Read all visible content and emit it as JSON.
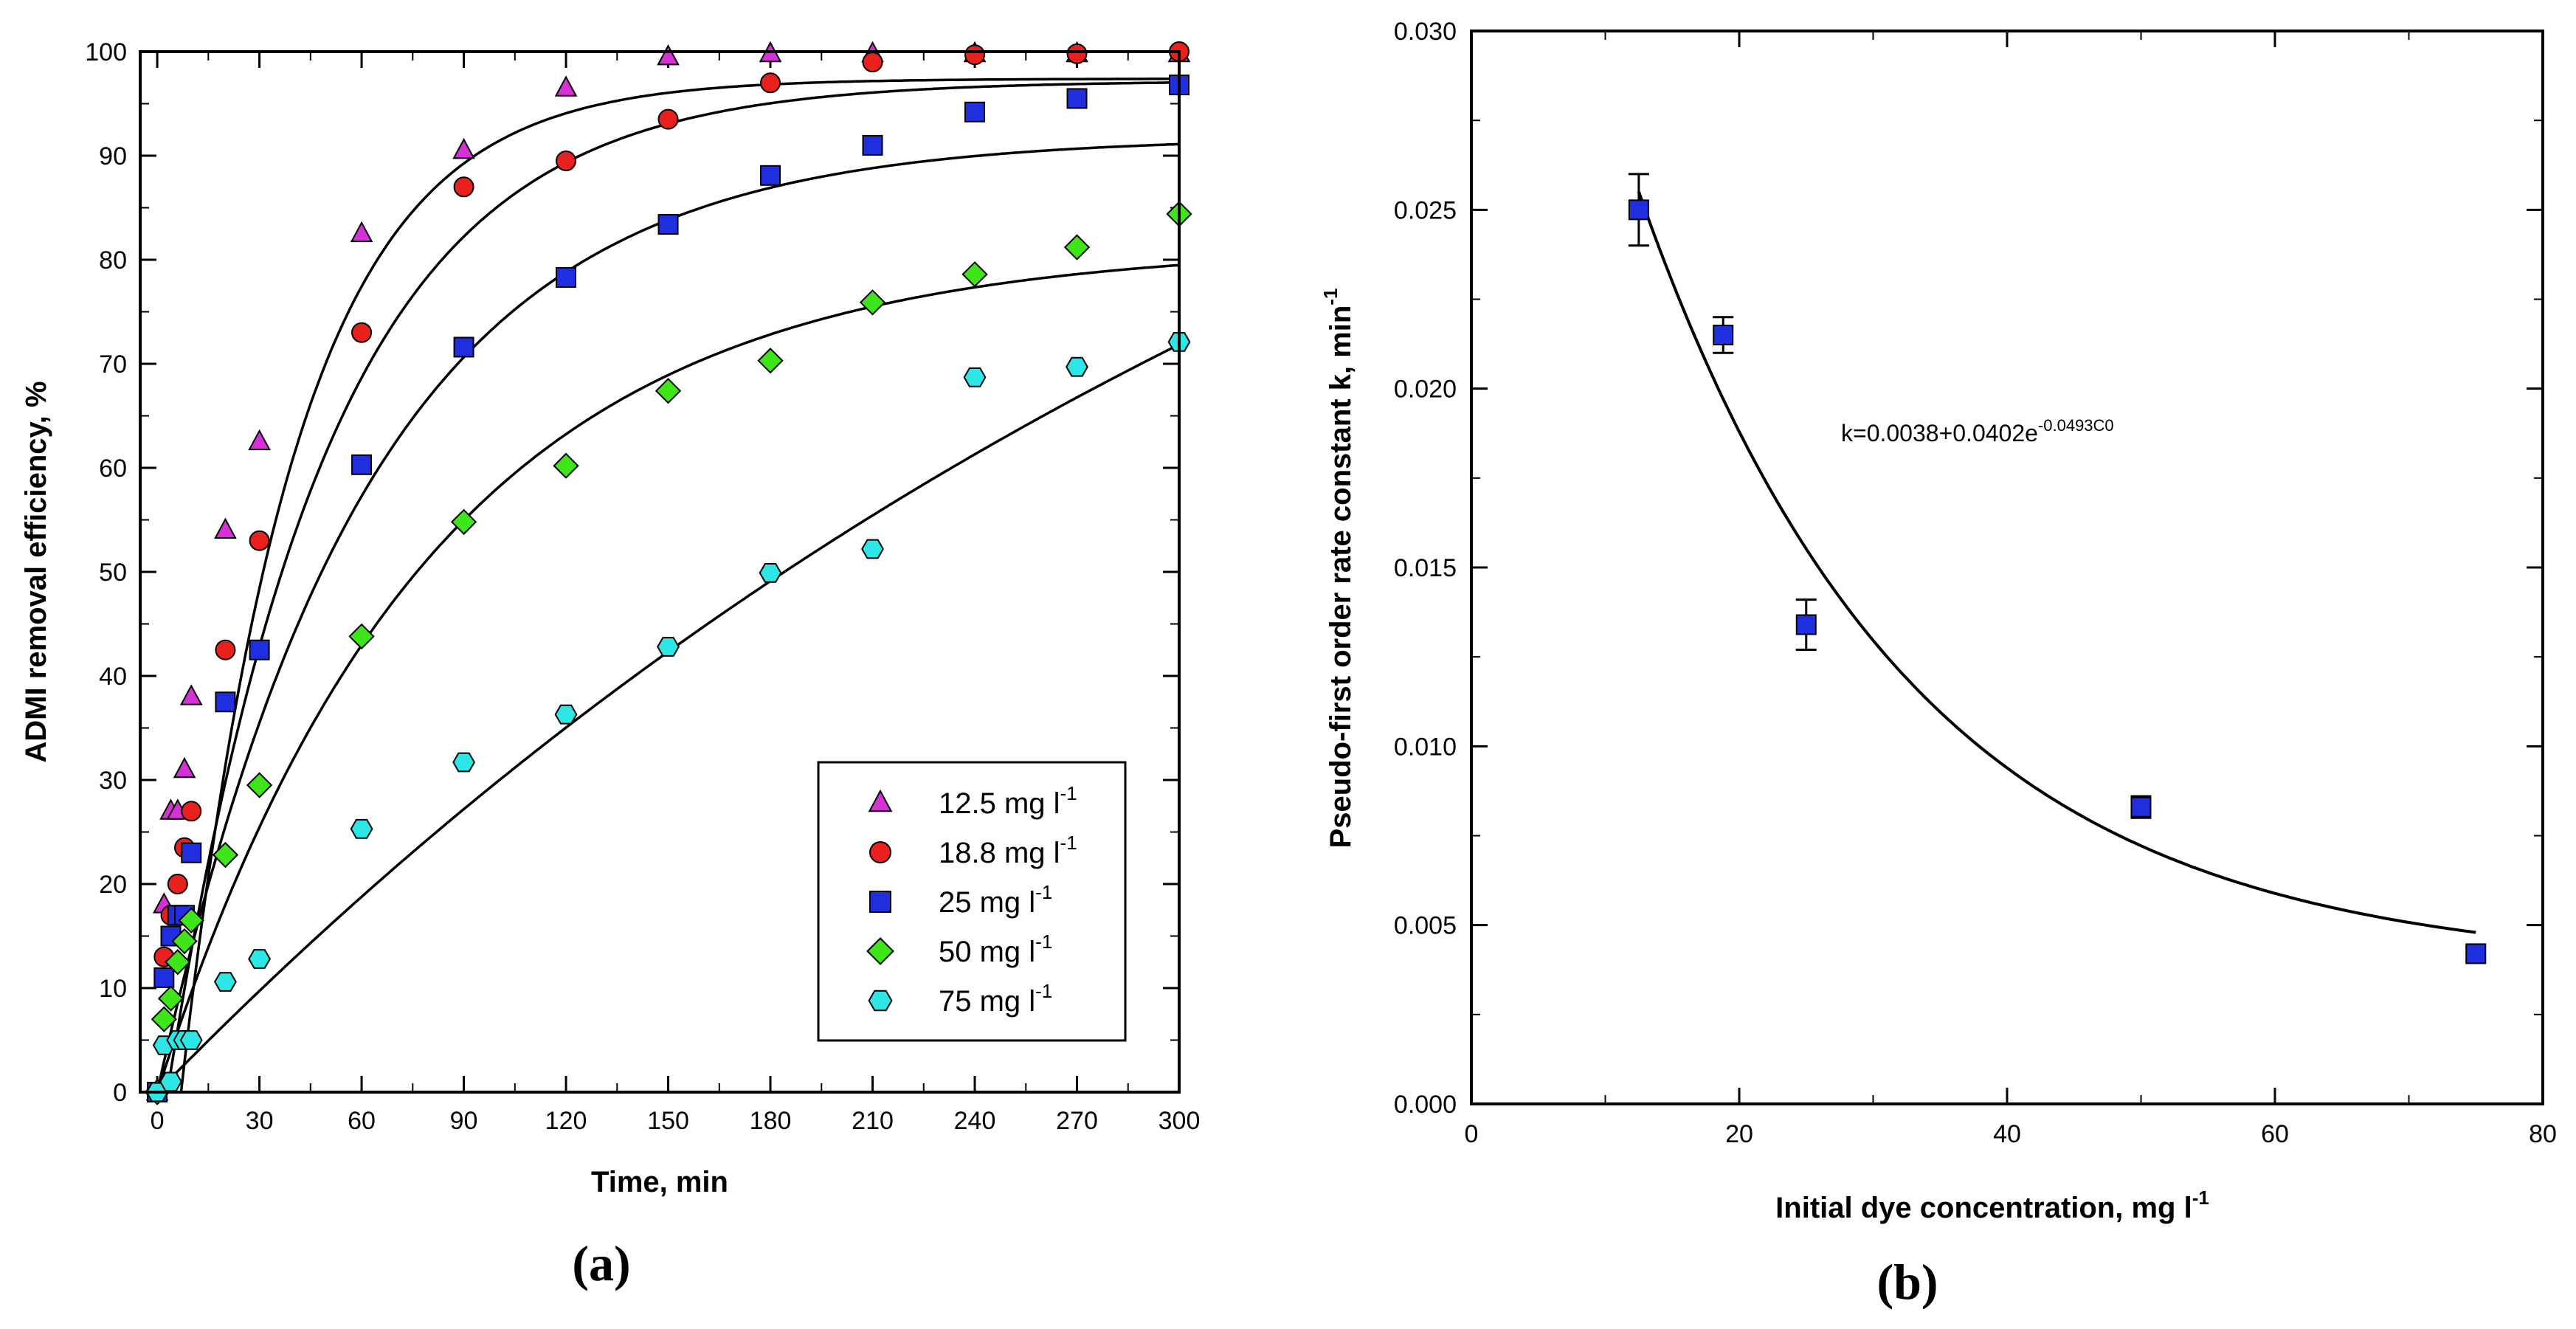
{
  "chart_data": [
    {
      "id": "a",
      "type": "scatter",
      "panel_label": "(a)",
      "xlabel": "Time, min",
      "ylabel": "ADMI removal efficiency, %",
      "xlim": [
        -5,
        300
      ],
      "ylim": [
        0,
        100
      ],
      "xticks": [
        0,
        30,
        60,
        90,
        120,
        150,
        180,
        210,
        240,
        270,
        300
      ],
      "yticks": [
        0,
        10,
        20,
        30,
        40,
        50,
        60,
        70,
        80,
        90,
        100
      ],
      "legend_position": "bottom-right",
      "legend_unit": "mg l",
      "legend_unit_exp": "-1",
      "series": [
        {
          "name": "12.5 mg l-1",
          "legend_value": "12.5",
          "marker": "triangle",
          "color": "#d631d6",
          "x": [
            0,
            2,
            4,
            6,
            8,
            10,
            20,
            30,
            60,
            90,
            120,
            150,
            180,
            210,
            240,
            270,
            300
          ],
          "y": [
            0,
            18,
            27,
            27,
            31,
            38,
            54,
            62.5,
            82.5,
            90.5,
            96.5,
            99.5,
            99.8,
            99.8,
            99.8,
            99.8,
            99.8
          ],
          "fit": {
            "model": "first-order-lag",
            "qmax": 97.4,
            "k": 0.0299,
            "t0": 7
          }
        },
        {
          "name": "18.8 mg l-1",
          "legend_value": "18.8",
          "marker": "circle",
          "color": "#e8211f",
          "x": [
            0,
            2,
            4,
            6,
            8,
            10,
            20,
            30,
            60,
            90,
            120,
            150,
            180,
            210,
            240,
            270,
            300
          ],
          "y": [
            0,
            13,
            17,
            20,
            23.5,
            27,
            42.5,
            53,
            73,
            87,
            89.5,
            93.5,
            97,
            99,
            99.7,
            99.8,
            100
          ],
          "fit": {
            "model": "first-order-lag",
            "qmax": 97.2,
            "k": 0.0215,
            "t0": 3
          }
        },
        {
          "name": "25 mg l-1",
          "legend_value": "25",
          "marker": "square",
          "color": "#1f2fe0",
          "x": [
            0,
            2,
            4,
            6,
            8,
            10,
            20,
            30,
            60,
            90,
            120,
            150,
            180,
            210,
            240,
            270,
            300
          ],
          "y": [
            0,
            11,
            15,
            17,
            17,
            23,
            37.5,
            42.5,
            60.3,
            71.6,
            78.3,
            83.4,
            88.1,
            91,
            94.2,
            95.5,
            96.8
          ],
          "fit": {
            "model": "first-order",
            "qmax": 91.8,
            "k": 0.0163
          }
        },
        {
          "name": "50 mg l-1",
          "legend_value": "50",
          "marker": "diamond",
          "color": "#3ee619",
          "x": [
            0,
            2,
            4,
            6,
            8,
            10,
            20,
            30,
            60,
            90,
            120,
            150,
            180,
            210,
            240,
            270,
            300
          ],
          "y": [
            0,
            7,
            9,
            12.5,
            14.5,
            16.5,
            22.8,
            29.5,
            43.8,
            54.8,
            60.2,
            67.4,
            70.3,
            75.9,
            78.6,
            81.2,
            84.4
          ],
          "fit": {
            "model": "first-order",
            "qmax": 81.4,
            "k": 0.0125
          }
        },
        {
          "name": "75 mg l-1",
          "legend_value": "75",
          "marker": "hexagon",
          "color": "#2de6e6",
          "x": [
            0,
            2,
            4,
            6,
            8,
            10,
            20,
            30,
            60,
            90,
            120,
            150,
            180,
            210,
            240,
            270,
            300
          ],
          "y": [
            0,
            4.5,
            1,
            5,
            5,
            5,
            10.6,
            12.8,
            25.3,
            31.7,
            36.3,
            42.8,
            49.9,
            52.2,
            68.7,
            69.7,
            72.1
          ],
          "fit": {
            "model": "first-order",
            "qmax": 140,
            "k": 0.0024
          }
        }
      ]
    },
    {
      "id": "b",
      "type": "scatter",
      "panel_label": "(b)",
      "xlabel": "Initial dye concentration, mg l",
      "xlabel_exp": "-1",
      "ylabel": "Pseudo-first order rate constant k, min",
      "ylabel_exp": "-1",
      "xlim": [
        0,
        80
      ],
      "ylim": [
        0,
        0.03
      ],
      "xticks": [
        0,
        20,
        40,
        60,
        80
      ],
      "xtick_labels": [
        "0",
        "20",
        "40",
        "60",
        "80"
      ],
      "yticks": [
        0,
        0.005,
        0.01,
        0.015,
        0.02,
        0.025,
        0.03
      ],
      "ytick_labels": [
        "0.000",
        "0.005",
        "0.010",
        "0.015",
        "0.020",
        "0.025",
        "0.030"
      ],
      "annotation_main": "k=0.0038+0.0402e",
      "annotation_exp": "-0.0493C0",
      "series": [
        {
          "name": "k",
          "marker": "square",
          "color": "#1f2fe0",
          "x": [
            12.5,
            18.8,
            25,
            50,
            75
          ],
          "y": [
            0.025,
            0.0215,
            0.0134,
            0.0083,
            0.0042
          ],
          "err": [
            0.001,
            0.0005,
            0.0007,
            0.0003,
            0.0002
          ]
        }
      ],
      "fit": {
        "a": 0.0038,
        "b": 0.0402,
        "c": 0.0493,
        "xrange": [
          12.5,
          75
        ]
      }
    }
  ]
}
